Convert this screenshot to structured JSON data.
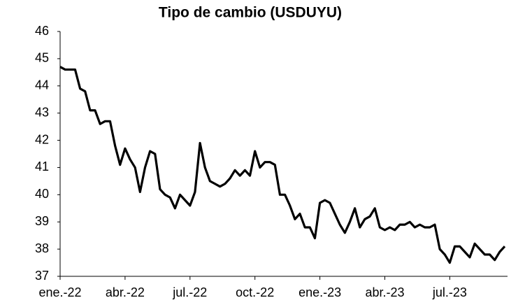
{
  "chart_data": {
    "type": "line",
    "title": "Tipo de cambio (USDUYU)",
    "categories": [
      "ene.-22",
      null,
      null,
      null,
      null,
      null,
      null,
      null,
      null,
      null,
      null,
      null,
      null,
      "abr.-22",
      null,
      null,
      null,
      null,
      null,
      null,
      null,
      null,
      null,
      null,
      null,
      null,
      "jul.-22",
      null,
      null,
      null,
      null,
      null,
      null,
      null,
      null,
      null,
      null,
      null,
      null,
      "oct.-22",
      null,
      null,
      null,
      null,
      null,
      null,
      null,
      null,
      null,
      null,
      null,
      null,
      "ene.-23",
      null,
      null,
      null,
      null,
      null,
      null,
      null,
      null,
      null,
      null,
      null,
      null,
      "abr.-23",
      null,
      null,
      null,
      null,
      null,
      null,
      null,
      null,
      null,
      null,
      null,
      null,
      "jul.-23",
      null,
      null,
      null,
      null,
      null,
      null,
      null,
      null,
      null,
      null,
      null
    ],
    "series": [
      {
        "name": "USDUYU",
        "color": "#000000",
        "values": [
          44.7,
          44.6,
          44.6,
          44.6,
          43.9,
          43.8,
          43.1,
          43.1,
          42.6,
          42.7,
          42.7,
          41.8,
          41.1,
          41.7,
          41.3,
          41.0,
          40.1,
          41.0,
          41.6,
          41.5,
          40.2,
          40.0,
          39.9,
          39.5,
          40.0,
          39.8,
          39.6,
          40.1,
          41.9,
          41.0,
          40.5,
          40.4,
          40.3,
          40.4,
          40.6,
          40.9,
          40.7,
          40.9,
          40.7,
          41.6,
          41.0,
          41.2,
          41.2,
          41.1,
          40.0,
          40.0,
          39.6,
          39.1,
          39.3,
          38.8,
          38.8,
          38.4,
          39.7,
          39.8,
          39.7,
          39.3,
          38.9,
          38.6,
          39.0,
          39.5,
          38.8,
          39.1,
          39.2,
          39.5,
          38.8,
          38.7,
          38.8,
          38.7,
          38.9,
          38.9,
          39.0,
          38.8,
          38.9,
          38.8,
          38.8,
          38.9,
          38.0,
          37.8,
          37.5,
          38.1,
          38.1,
          37.9,
          37.7,
          38.2,
          38.0,
          37.8,
          37.8,
          37.6,
          37.9,
          38.1
        ]
      }
    ],
    "ylim": [
      37,
      46
    ],
    "yticks": [
      37,
      38,
      39,
      40,
      41,
      42,
      43,
      44,
      45,
      46
    ],
    "grid": false
  }
}
